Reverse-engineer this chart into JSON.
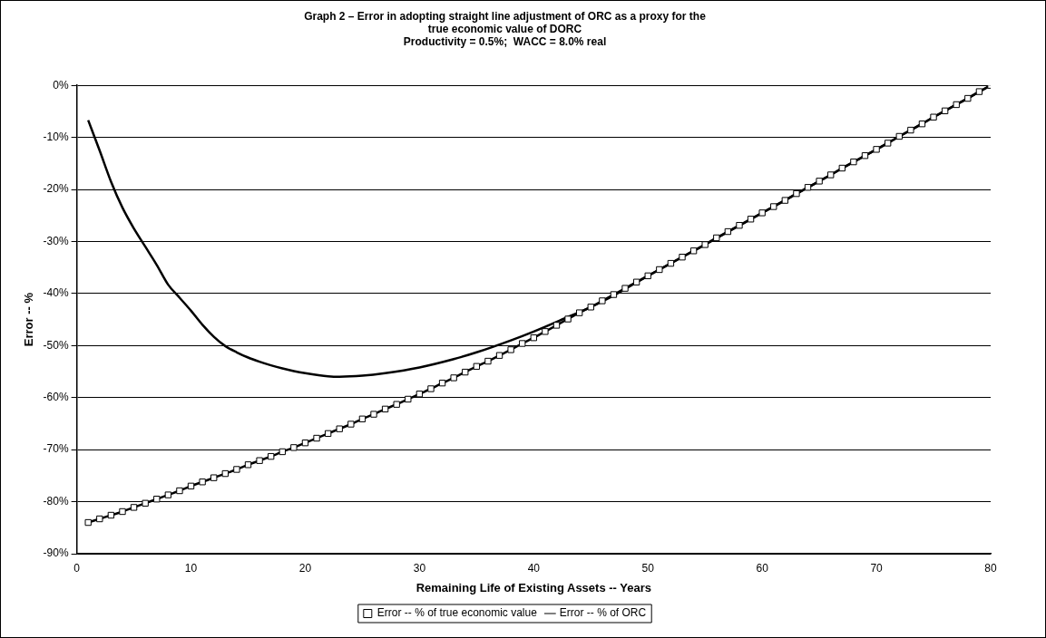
{
  "chart_data": {
    "type": "line",
    "title": "Graph 2 – Error in adopting straight line adjustment of ORC as a proxy for the\ntrue economic value of DORC",
    "subtitle": "Productivity = 0.5%;  WACC = 8.0% real",
    "xlabel": "Remaining Life of Existing Assets -- Years",
    "ylabel": "Error -- %",
    "xlim": [
      0,
      80
    ],
    "xticks": [
      0,
      10,
      20,
      30,
      40,
      50,
      60,
      70,
      80
    ],
    "ylim": [
      -90,
      0
    ],
    "yticks": [
      {
        "value": -90,
        "label": "-90%"
      },
      {
        "value": -80,
        "label": "-80%"
      },
      {
        "value": -70,
        "label": "-70%"
      },
      {
        "value": -60,
        "label": "-60%"
      },
      {
        "value": -50,
        "label": "-50%"
      },
      {
        "value": -40,
        "label": "-40%"
      },
      {
        "value": -30,
        "label": "-30%"
      },
      {
        "value": -20,
        "label": "-20%"
      },
      {
        "value": -10,
        "label": "-10%"
      },
      {
        "value": 0,
        "label": "0%"
      }
    ],
    "grid": "y",
    "legend": "bottom",
    "line_style": "solid",
    "series": [
      {
        "name": "Error -- % of true economic value",
        "color": "#000000",
        "marker": "square",
        "x": [
          1,
          2,
          3,
          4,
          5,
          6,
          7,
          8,
          9,
          10,
          11,
          12,
          13,
          14,
          15,
          16,
          17,
          18,
          19,
          20,
          21,
          22,
          23,
          24,
          25,
          26,
          27,
          28,
          29,
          30,
          31,
          32,
          33,
          34,
          35,
          36,
          37,
          38,
          39,
          40,
          41,
          42,
          43,
          44,
          45,
          46,
          47,
          48,
          49,
          50,
          51,
          52,
          53,
          54,
          55,
          56,
          57,
          58,
          59,
          60,
          61,
          62,
          63,
          64,
          65,
          66,
          67,
          68,
          69,
          70,
          71,
          72,
          73,
          74,
          75,
          76,
          77,
          78,
          79,
          80
        ],
        "values": [
          -84.0,
          -83.3,
          -82.6,
          -81.9,
          -81.1,
          -80.3,
          -79.5,
          -78.7,
          -77.9,
          -77.0,
          -76.2,
          -75.4,
          -74.6,
          -73.8,
          -72.9,
          -72.1,
          -71.3,
          -70.4,
          -69.6,
          -68.7,
          -67.8,
          -66.9,
          -66.0,
          -65.1,
          -64.1,
          -63.2,
          -62.2,
          -61.3,
          -60.3,
          -59.3,
          -58.3,
          -57.2,
          -56.2,
          -55.1,
          -54.0,
          -53.0,
          -51.9,
          -50.8,
          -49.6,
          -48.5,
          -47.3,
          -46.1,
          -44.9,
          -43.7,
          -42.6,
          -41.4,
          -40.2,
          -39.0,
          -37.8,
          -36.6,
          -35.4,
          -34.2,
          -33.0,
          -31.8,
          -30.6,
          -29.3,
          -28.1,
          -26.9,
          -25.7,
          -24.5,
          -23.3,
          -22.1,
          -20.8,
          -19.6,
          -18.4,
          -17.2,
          -15.9,
          -14.7,
          -13.5,
          -12.3,
          -11.1,
          -9.8,
          -8.6,
          -7.4,
          -6.1,
          -4.9,
          -3.7,
          -2.5,
          -1.2,
          0
        ]
      },
      {
        "name": "Error -- % of ORC",
        "color": "#000000",
        "marker": "none",
        "x": [
          1,
          2,
          3,
          4,
          5,
          6,
          7,
          8,
          9,
          10,
          11,
          12,
          13,
          14,
          15,
          16,
          17,
          18,
          19,
          20,
          22,
          23,
          25,
          27,
          30,
          33,
          35,
          38,
          40,
          43,
          45,
          47,
          50,
          55,
          60,
          65,
          70,
          75,
          80
        ],
        "values": [
          -6.7,
          -12.5,
          -18.5,
          -23.5,
          -27.5,
          -31,
          -34.5,
          -38.3,
          -40.8,
          -43.3,
          -46,
          -48.3,
          -50.1,
          -51.3,
          -52.3,
          -53.1,
          -53.8,
          -54.4,
          -54.9,
          -55.3,
          -55.9,
          -56,
          -55.8,
          -55.3,
          -54.2,
          -52.6,
          -51.3,
          -49,
          -47.3,
          -44.5,
          -42.6,
          -40.4,
          -36.6,
          -30.6,
          -24.5,
          -18.4,
          -12.3,
          -6.1,
          0
        ]
      }
    ]
  }
}
